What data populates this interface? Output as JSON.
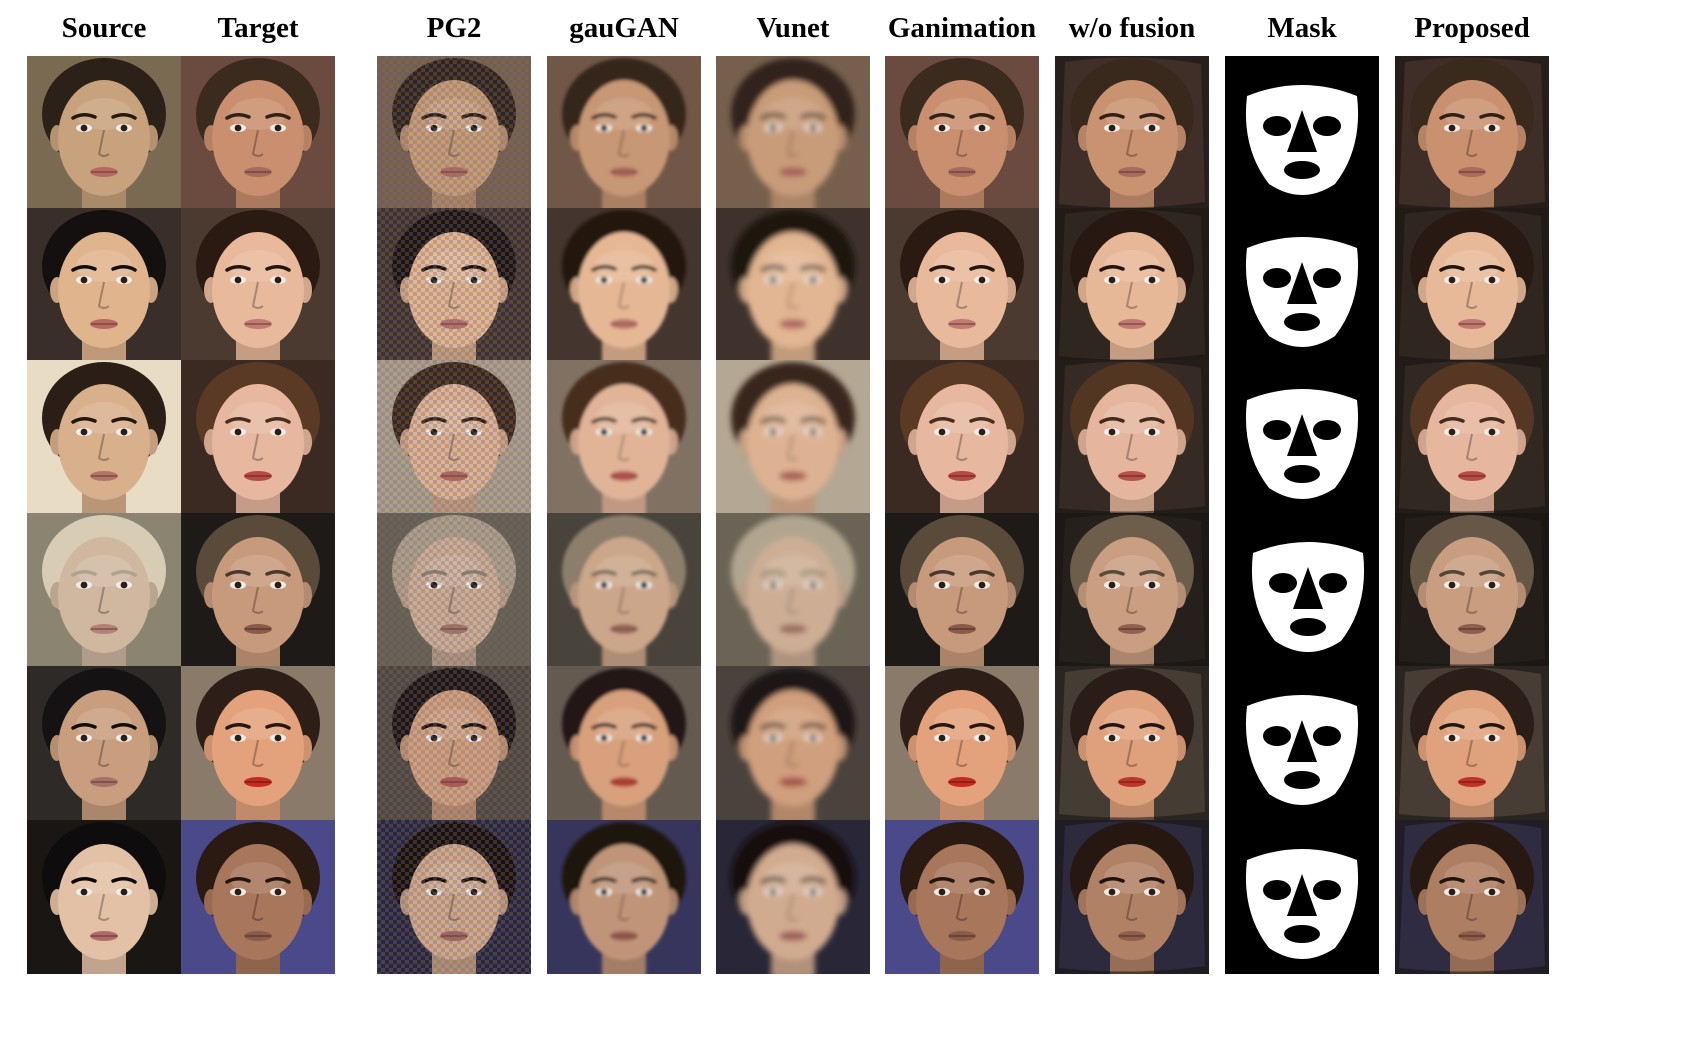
{
  "columns": [
    {
      "key": "source",
      "label": "Source"
    },
    {
      "key": "target",
      "label": "Target"
    },
    {
      "key": "pg2",
      "label": "PG2"
    },
    {
      "key": "gaugan",
      "label": "gauGAN"
    },
    {
      "key": "vunet",
      "label": "Vunet"
    },
    {
      "key": "ganimation",
      "label": "Ganimation"
    },
    {
      "key": "wo_fusion",
      "label": "w/o fusion"
    },
    {
      "key": "mask",
      "label": "Mask"
    },
    {
      "key": "proposed",
      "label": "Proposed"
    }
  ],
  "rows": [
    {
      "source": {
        "bg": "#7a6a52",
        "skin": "#c7a27c",
        "hair": "#2c2118",
        "lips": "#b86a62"
      },
      "target": {
        "bg": "#6b4a40",
        "skin": "#c98f6e",
        "hair": "#3b2a1e",
        "lips": "#a86a5c"
      }
    },
    {
      "source": {
        "bg": "#3a2e2a",
        "skin": "#e0b58e",
        "hair": "#141010",
        "lips": "#b86a62"
      },
      "target": {
        "bg": "#4a3a30",
        "skin": "#e8b99a",
        "hair": "#2a1a12",
        "lips": "#c27a72"
      }
    },
    {
      "source": {
        "bg": "#e8dcc4",
        "skin": "#d9b08c",
        "hair": "#2a1e16",
        "lips": "#b57468"
      },
      "target": {
        "bg": "#3a2a22",
        "skin": "#e7b7a0",
        "hair": "#5a3a24",
        "lips": "#b84a46"
      }
    },
    {
      "source": {
        "bg": "#8a8470",
        "skin": "#cfb7a0",
        "hair": "#d8ccb4",
        "lips": "#b48276"
      },
      "target": {
        "bg": "#1e1a18",
        "skin": "#c89a7c",
        "hair": "#5a4a3a",
        "lips": "#8a5a4a"
      }
    },
    {
      "source": {
        "bg": "#2e2a28",
        "skin": "#c89e7e",
        "hair": "#141212",
        "lips": "#a8706a"
      },
      "target": {
        "bg": "#8a7a6a",
        "skin": "#e3a27c",
        "hair": "#2e1e18",
        "lips": "#c22a22"
      }
    },
    {
      "source": {
        "bg": "#1a1614",
        "skin": "#e3c1a6",
        "hair": "#0e0c0c",
        "lips": "#b26a66"
      },
      "target": {
        "bg": "#4a4a8a",
        "skin": "#a8765a",
        "hair": "#2a1a12",
        "lips": "#8a5a4a"
      }
    }
  ]
}
